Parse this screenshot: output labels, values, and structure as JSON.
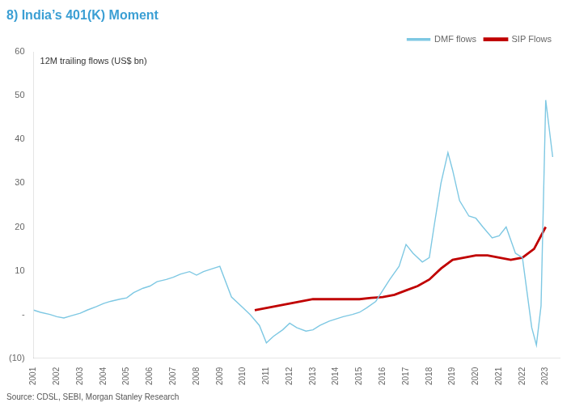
{
  "chart_data": {
    "type": "line",
    "title": "8) India’s 401(K) Moment",
    "title_color": "#3B9FD4",
    "annotation": "12M trailing flows (US$ bn)",
    "source": "Source: CDSL, SEBI, Morgan Stanley Research",
    "series": [
      {
        "name": "DMF flows",
        "color": "#7EC8E3",
        "x": [
          2001,
          2001.3,
          2001.7,
          2002,
          2002.3,
          2002.6,
          2003,
          2003.3,
          2003.7,
          2004,
          2004.3,
          2004.7,
          2005,
          2005.3,
          2005.7,
          2006,
          2006.3,
          2006.7,
          2007,
          2007.3,
          2007.7,
          2008,
          2008.3,
          2008.7,
          2009,
          2009.5,
          2010,
          2010.3,
          2010.7,
          2011,
          2011.3,
          2011.7,
          2012,
          2012.3,
          2012.7,
          2013,
          2013.3,
          2013.7,
          2014,
          2014.3,
          2014.7,
          2015,
          2015.3,
          2015.7,
          2016,
          2016.3,
          2016.7,
          2017,
          2017.3,
          2017.7,
          2018,
          2018.2,
          2018.5,
          2018.8,
          2019,
          2019.3,
          2019.7,
          2020,
          2020.3,
          2020.7,
          2021,
          2021.3,
          2021.7,
          2022,
          2022.2,
          2022.4,
          2022.6,
          2022.8,
          2023,
          2023.3
        ],
        "values": [
          1.0,
          0.5,
          0.0,
          -0.5,
          -0.8,
          -0.3,
          0.3,
          1.0,
          1.8,
          2.5,
          3.0,
          3.5,
          3.8,
          5.0,
          6.0,
          6.5,
          7.5,
          8.0,
          8.5,
          9.2,
          9.8,
          9.0,
          9.8,
          10.5,
          11.0,
          4.0,
          1.5,
          0.0,
          -2.5,
          -6.5,
          -5.0,
          -3.5,
          -2.0,
          -3.0,
          -3.8,
          -3.5,
          -2.5,
          -1.5,
          -1.0,
          -0.5,
          0.0,
          0.5,
          1.5,
          3.0,
          5.5,
          8.0,
          11.0,
          16.0,
          14.0,
          12.0,
          13.0,
          20.0,
          30.0,
          37.0,
          33.0,
          26.0,
          22.5,
          22.0,
          20.0,
          17.5,
          18.0,
          20.0,
          14.0,
          13.0,
          5.0,
          -3.0,
          -7.0,
          2.0,
          49.0,
          36.0
        ]
      },
      {
        "name": "SIP Flows",
        "color": "#C00000",
        "x": [
          2010.5,
          2011,
          2011.5,
          2012,
          2012.5,
          2013,
          2013.5,
          2014,
          2014.5,
          2015,
          2015.5,
          2016,
          2016.5,
          2017,
          2017.5,
          2018,
          2018.5,
          2019,
          2019.5,
          2020,
          2020.5,
          2021,
          2021.5,
          2022,
          2022.5,
          2023
        ],
        "values": [
          1.0,
          1.5,
          2.0,
          2.5,
          3.0,
          3.5,
          3.5,
          3.5,
          3.5,
          3.5,
          3.8,
          4.0,
          4.5,
          5.5,
          6.5,
          8.0,
          10.5,
          12.5,
          13.0,
          13.5,
          13.5,
          13.0,
          12.5,
          13.0,
          15.0,
          20.0
        ]
      }
    ],
    "xlim": [
      2001,
      2023.6
    ],
    "xticks": [
      2001,
      2002,
      2003,
      2004,
      2005,
      2006,
      2007,
      2008,
      2009,
      2010,
      2011,
      2012,
      2013,
      2014,
      2015,
      2016,
      2017,
      2018,
      2019,
      2020,
      2021,
      2022,
      2023
    ],
    "ylim": [
      -10,
      60
    ],
    "yticks": [
      {
        "value": -10,
        "label": "(10)"
      },
      {
        "value": 0,
        "label": "-"
      },
      10,
      20,
      30,
      40,
      50,
      60
    ],
    "grid": false,
    "legend": "upper right"
  }
}
